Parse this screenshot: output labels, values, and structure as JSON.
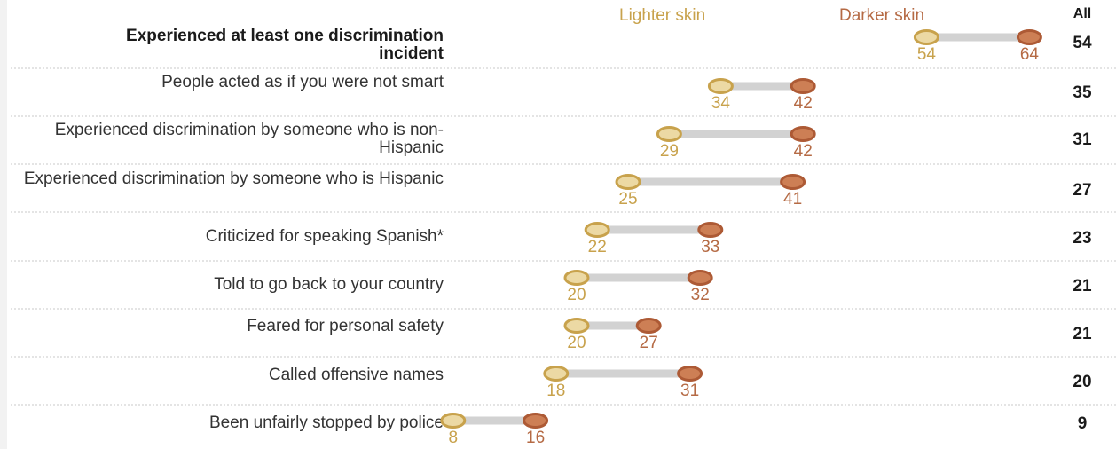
{
  "colors": {
    "lighter": "#c8a24c",
    "lighter_fill": "#ecd9a4",
    "darker": "#ad5a35",
    "darker_fill": "#cd7f55",
    "connector": "#d2d2d2",
    "divider": "#c8c8c8",
    "value_light": "#c8a24c",
    "value_dark": "#b56a44"
  },
  "legend": {
    "lighter": "Lighter skin",
    "darker": "Darker skin",
    "all": "All"
  },
  "chart_data": {
    "type": "dumbbell",
    "series": [
      {
        "name": "Lighter skin",
        "values": [
          54,
          34,
          29,
          25,
          22,
          20,
          20,
          18,
          8
        ]
      },
      {
        "name": "Darker skin",
        "values": [
          64,
          42,
          42,
          41,
          33,
          32,
          27,
          31,
          16
        ]
      },
      {
        "name": "All",
        "values": [
          54,
          35,
          31,
          27,
          23,
          21,
          21,
          20,
          9
        ]
      }
    ],
    "categories": [
      "Experienced at least one discrimination incident",
      "People acted as if you were not smart",
      "Experienced discrimination by someone who is non-Hispanic",
      "Experienced discrimination by someone who is Hispanic",
      "Criticized for speaking Spanish*",
      "Told to go back to your country",
      "Feared for personal safety",
      "Called offensive names",
      "Been unfairly stopped by police"
    ],
    "rows": [
      {
        "label": "Experienced at least one discrimination incident",
        "lighter": 54,
        "darker": 64,
        "all": 54
      },
      {
        "label": "People acted as if you were not smart",
        "lighter": 34,
        "darker": 42,
        "all": 35
      },
      {
        "label": "Experienced discrimination by someone who is non-Hispanic",
        "lighter": 29,
        "darker": 42,
        "all": 31
      },
      {
        "label": "Experienced discrimination by someone who is Hispanic",
        "lighter": 25,
        "darker": 41,
        "all": 27
      },
      {
        "label": "Criticized for speaking Spanish*",
        "lighter": 22,
        "darker": 33,
        "all": 23
      },
      {
        "label": "Told to go back to your country",
        "lighter": 20,
        "darker": 32,
        "all": 21
      },
      {
        "label": "Feared for personal safety",
        "lighter": 20,
        "darker": 27,
        "all": 21
      },
      {
        "label": "Called offensive names",
        "lighter": 18,
        "darker": 31,
        "all": 20
      },
      {
        "label": "Been unfairly stopped by police",
        "lighter": 8,
        "darker": 16,
        "all": 9
      }
    ]
  }
}
